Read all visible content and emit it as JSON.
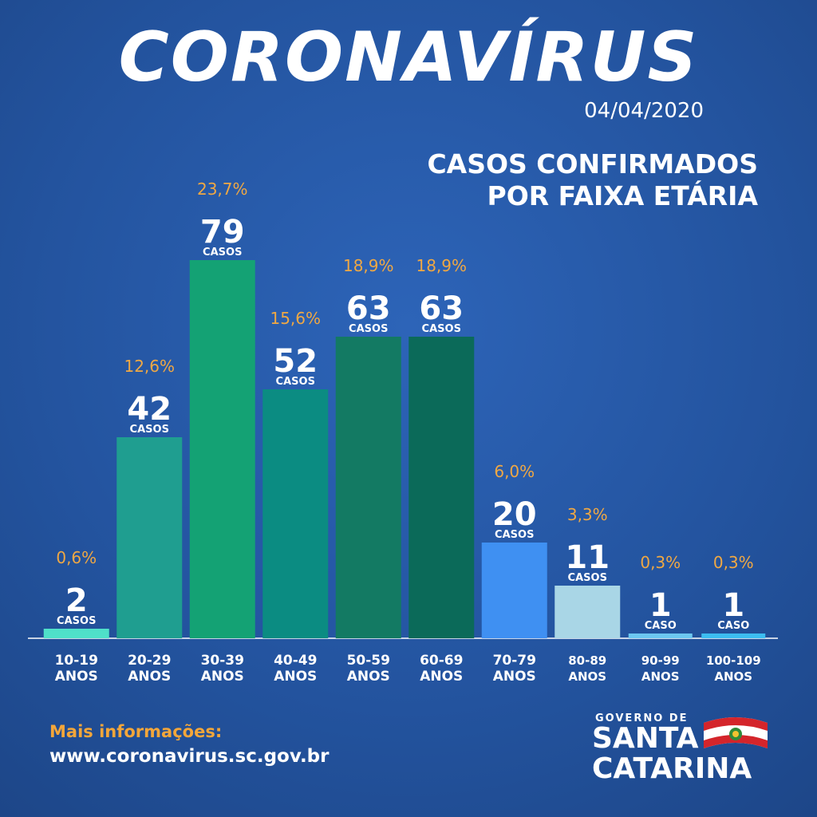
{
  "title": "CORONAVÍRUS",
  "date": "04/04/2020",
  "chart_data": {
    "type": "bar",
    "title": "CASOS CONFIRMADOS\nPOR FAIXA ETÁRIA",
    "categories": [
      "10-19\nANOS",
      "20-29\nANOS",
      "30-39\nANOS",
      "40-49\nANOS",
      "50-59\nANOS",
      "60-69\nANOS",
      "70-79\nANOS",
      "80-89\nANOS",
      "90-99\nANOS",
      "100-109\nANOS"
    ],
    "values": [
      2,
      42,
      79,
      52,
      63,
      63,
      20,
      11,
      1,
      1
    ],
    "unit_labels": [
      "CASOS",
      "CASOS",
      "CASOS",
      "CASOS",
      "CASOS",
      "CASOS",
      "CASOS",
      "CASOS",
      "CASO",
      "CASO"
    ],
    "share_labels": [
      "0,6%",
      "12,6%",
      "23,7%",
      "15,6%",
      "18,9%",
      "18,9%",
      "6,0%",
      "3,3%",
      "0,3%",
      "0,3%"
    ],
    "colors": [
      "#4fe0c9",
      "#1f9e90",
      "#14a274",
      "#0b8c82",
      "#137a63",
      "#0b6a59",
      "#3f90f2",
      "#a9d6e6",
      "#6cc7f0",
      "#3cbdf0"
    ],
    "ylim": [
      0,
      80
    ]
  },
  "footer": {
    "more": "Mais informações:",
    "url": "www.coronavirus.sc.gov.br"
  },
  "logo": {
    "top": "GOVERNO DE",
    "line1": "SANTA",
    "line2": "CATARINA"
  }
}
